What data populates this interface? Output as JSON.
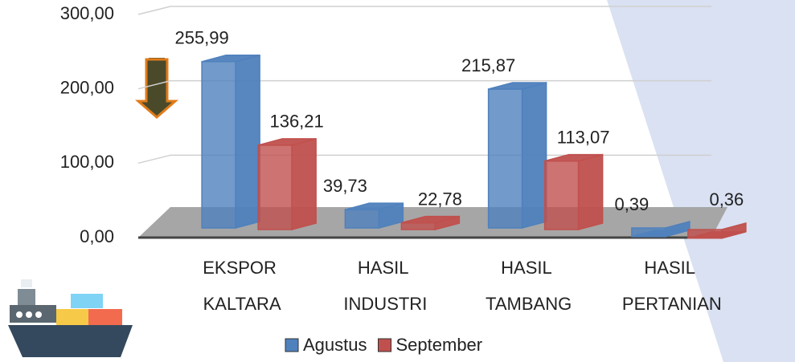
{
  "chart_data": {
    "type": "bar",
    "categories": [
      "EKSPOR KALTARA",
      "HASIL INDUSTRI",
      "HASIL TAMBANG",
      "HASIL PERTANIAN"
    ],
    "series": [
      {
        "name": "Agustus",
        "color": "#4f81bd",
        "values": [
          255.99,
          39.73,
          215.87,
          0.39
        ],
        "value_labels": [
          "255,99",
          "39,73",
          "215,87",
          "0,39"
        ]
      },
      {
        "name": "September",
        "color": "#c0504d",
        "values": [
          136.21,
          22.78,
          113.07,
          0.36
        ],
        "value_labels": [
          "136,21",
          "22,78",
          "113,07",
          "0,36"
        ]
      }
    ],
    "ylim": [
      0,
      300
    ],
    "yticks": [
      {
        "value": 0,
        "label": "0,00"
      },
      {
        "value": 100,
        "label": "100,00"
      },
      {
        "value": 200,
        "label": "200,00"
      },
      {
        "value": 300,
        "label": "300,00"
      }
    ],
    "grid": true,
    "legend": "bottom"
  }
}
